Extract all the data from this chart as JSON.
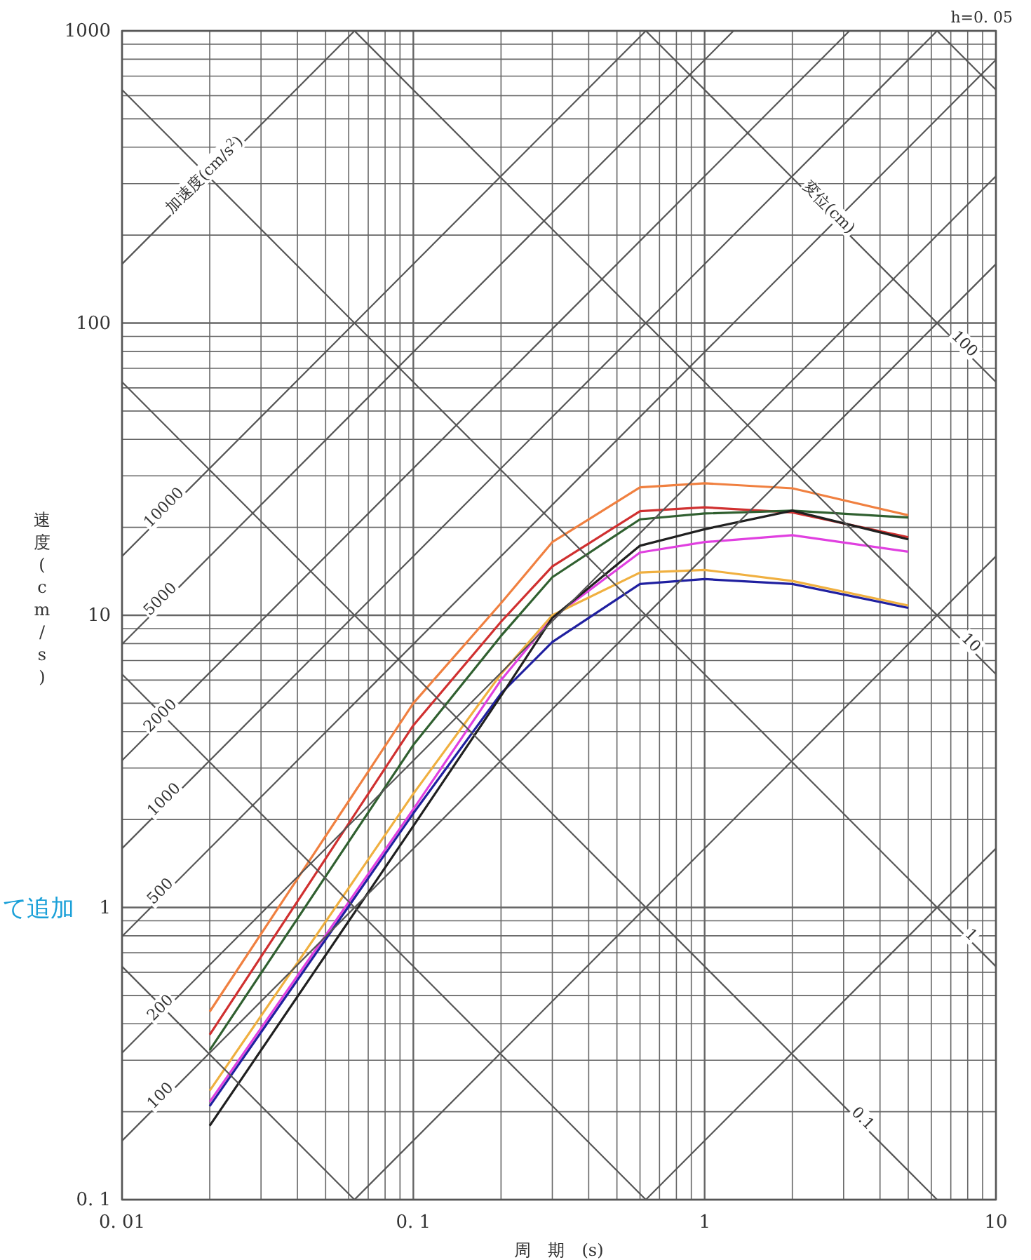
{
  "chart_data": {
    "type": "line",
    "log": "xy",
    "grid": true,
    "xlabel": "周　期　(s)",
    "ylabel": "速度(cm/s)",
    "xlim": [
      0.01,
      10
    ],
    "ylim": [
      0.1,
      1000
    ],
    "xticks": [
      {
        "value": 0.01,
        "label": "0. 01"
      },
      {
        "value": 0.1,
        "label": "0. 1"
      },
      1,
      10
    ],
    "yticks": [
      {
        "value": 0.1,
        "label": "0. 1"
      },
      1,
      10,
      100,
      1000
    ],
    "annotations": [
      "h=0. 05",
      "て追加",
      {
        "text": "加速度(cm/s$^{2}$)",
        "x": 0.0197,
        "y": 313.5
      },
      {
        "text": "10000",
        "x": 0.0143,
        "y": 22.76
      },
      {
        "text": "5000",
        "x": 0.0139,
        "y": 11.06
      },
      {
        "text": "2000",
        "x": 0.0139,
        "y": 4.42
      },
      {
        "text": "1000",
        "x": 0.0143,
        "y": 2.28
      },
      {
        "text": "500",
        "x": 0.0139,
        "y": 1.106
      },
      {
        "text": "200",
        "x": 0.0139,
        "y": 0.442
      },
      {
        "text": "100",
        "x": 0.0139,
        "y": 0.221
      },
      {
        "text": "変位(cm)",
        "x": 2.6,
        "y": 241.7
      },
      {
        "text": "100",
        "x": 7.6,
        "y": 82.7
      },
      {
        "text": "10",
        "x": 8.0,
        "y": 7.85
      },
      {
        "text": "1",
        "x": 8.0,
        "y": 0.785
      },
      {
        "text": "0.1",
        "x": 3.4,
        "y": 0.1848
      }
    ],
    "x": [
      0.02,
      0.1,
      0.2,
      0.3,
      0.6,
      1,
      2,
      5
    ],
    "series": [
      {
        "color": "#f08040",
        "values": [
          0.44,
          5.0,
          11,
          17.8,
          27.4,
          28.3,
          27.2,
          22
        ]
      },
      {
        "color": "#d03030",
        "values": [
          0.367,
          4.2,
          9.5,
          14.7,
          22.7,
          23.4,
          22.5,
          18.5
        ]
      },
      {
        "color": "#306030",
        "values": [
          0.325,
          3.6,
          8.5,
          13.5,
          21.3,
          22.3,
          22.8,
          21.6
        ]
      },
      {
        "color": "#e040e0",
        "values": [
          0.216,
          2.17,
          6.0,
          9.8,
          16.4,
          17.8,
          18.8,
          16.5
        ]
      },
      {
        "color": "#f0b040",
        "values": [
          0.236,
          2.45,
          6.3,
          10,
          14,
          14.3,
          13.1,
          10.8
        ]
      },
      {
        "color": "#2020a0",
        "values": [
          0.209,
          2.1,
          5.4,
          8.1,
          12.8,
          13.3,
          12.8,
          10.6
        ]
      },
      {
        "color": "#202020",
        "values": [
          0.179,
          1.9,
          5.3,
          9.8,
          17.3,
          19.7,
          22.8,
          18.2
        ]
      },
      {
        "color": "#555555",
        "x": [
          0.6283,
          10
        ],
        "values": [
          0.1,
          1.592
        ]
      },
      {
        "color": "#555555",
        "x": [
          0.0628,
          10
        ],
        "values": [
          0.1,
          15.92
        ]
      },
      {
        "color": "#555555",
        "x": [
          0.01,
          10
        ],
        "values": [
          0.159,
          159.2
        ]
      },
      {
        "color": "#555555",
        "x": [
          0.01,
          10
        ],
        "values": [
          0.318,
          318.3
        ]
      },
      {
        "color": "#555555",
        "x": [
          0.01,
          10
        ],
        "values": [
          0.796,
          795.8
        ]
      },
      {
        "color": "#555555",
        "x": [
          0.01,
          6.283
        ],
        "values": [
          1.592,
          1000
        ]
      },
      {
        "color": "#555555",
        "x": [
          0.01,
          3.1416
        ],
        "values": [
          3.183,
          1000
        ]
      },
      {
        "color": "#555555",
        "x": [
          0.01,
          1.2566
        ],
        "values": [
          7.958,
          1000
        ]
      },
      {
        "color": "#555555",
        "x": [
          0.01,
          0.6283
        ],
        "values": [
          15.92,
          1000
        ]
      },
      {
        "color": "#555555",
        "x": [
          0.01,
          0.06283
        ],
        "values": [
          159.2,
          1000
        ]
      },
      {
        "color": "#555555",
        "x": [
          0.01,
          0.0628
        ],
        "values": [
          0.628,
          0.1
        ]
      },
      {
        "color": "#555555",
        "x": [
          0.01,
          0.6283
        ],
        "values": [
          6.283,
          0.1
        ]
      },
      {
        "color": "#555555",
        "x": [
          0.01,
          6.283
        ],
        "values": [
          62.83,
          0.1
        ]
      },
      {
        "color": "#555555",
        "x": [
          0.01,
          10
        ],
        "values": [
          628.3,
          0.628
        ]
      },
      {
        "color": "#555555",
        "x": [
          0.0628,
          10
        ],
        "values": [
          1000,
          6.283
        ]
      },
      {
        "color": "#555555",
        "x": [
          0.6283,
          10
        ],
        "values": [
          1000,
          62.83
        ]
      },
      {
        "color": "#555555",
        "x": [
          6.283,
          10
        ],
        "values": [
          1000,
          628.3
        ]
      }
    ]
  }
}
